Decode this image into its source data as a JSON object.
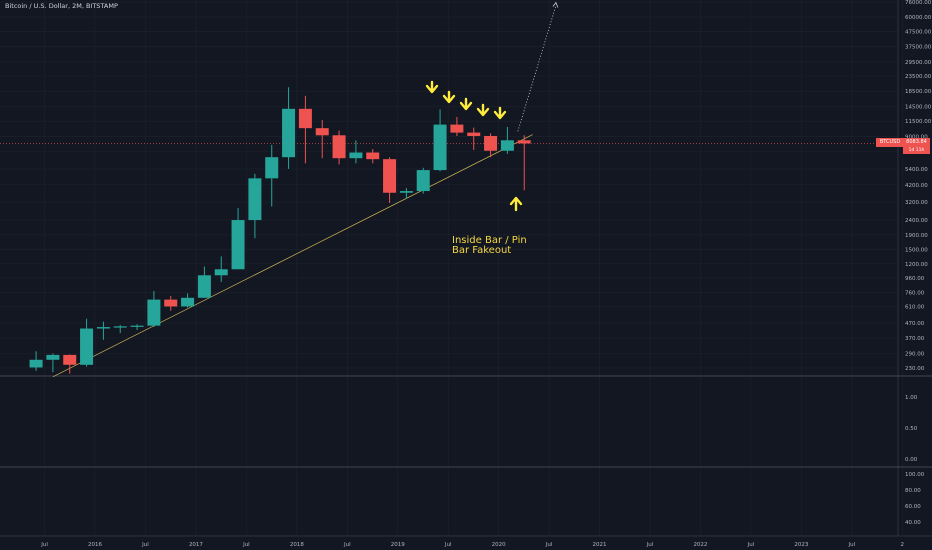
{
  "header": {
    "title": "Bitcoin / U.S. Dollar, 2M, BITSTAMP"
  },
  "annotation": {
    "text": "Inside Bar / Pin\nBar Fakeout",
    "color": "#f5d742"
  },
  "colors": {
    "up": "#26a69a",
    "down": "#ef5350",
    "background": "#131722",
    "grid": "#1e222d",
    "trendline": "#c9b458",
    "arrow": "#ffeb3b"
  },
  "price_badge": {
    "symbol": "BTCUSD",
    "price": "8083.84",
    "countdown": "1d 11h"
  },
  "chart_data": [
    {
      "type": "candlestick",
      "title": "Bitcoin / U.S. Dollar, 2M, BITSTAMP",
      "y_scale": "log",
      "x_ticks": [
        "Jul",
        "2016",
        "Jul",
        "2017",
        "Jul",
        "2018",
        "Jul",
        "2019",
        "Jul",
        "2020",
        "Jul",
        "2021",
        "Jul",
        "2022",
        "Jul",
        "2023",
        "Jul",
        "2"
      ],
      "y_ticks": [
        "76000.00",
        "60000.00",
        "47500.00",
        "37500.00",
        "29500.00",
        "23500.00",
        "18500.00",
        "14500.00",
        "11500.00",
        "9000.00",
        "7100.00",
        "5400.00",
        "4200.00",
        "3200.00",
        "2400.00",
        "1900.00",
        "1500.00",
        "1200.00",
        "960.00",
        "760.00",
        "610.00",
        "470.00",
        "370.00",
        "290.00",
        "230.00"
      ],
      "series": [
        {
          "values": [
            {
              "date": "2015-05",
              "open": 232,
              "high": 300,
              "low": 220,
              "close": 262
            },
            {
              "date": "2015-07",
              "open": 262,
              "high": 290,
              "low": 215,
              "close": 283
            },
            {
              "date": "2015-09",
              "open": 283,
              "high": 285,
              "low": 210,
              "close": 242
            },
            {
              "date": "2015-11",
              "open": 242,
              "high": 502,
              "low": 235,
              "close": 430
            },
            {
              "date": "2016-01",
              "open": 430,
              "high": 480,
              "low": 360,
              "close": 440
            },
            {
              "date": "2016-03",
              "open": 440,
              "high": 455,
              "low": 400,
              "close": 445
            },
            {
              "date": "2016-05",
              "open": 445,
              "high": 460,
              "low": 420,
              "close": 450
            },
            {
              "date": "2016-07",
              "open": 450,
              "high": 780,
              "low": 440,
              "close": 680
            },
            {
              "date": "2016-09",
              "open": 680,
              "high": 720,
              "low": 570,
              "close": 610
            },
            {
              "date": "2016-11",
              "open": 610,
              "high": 750,
              "low": 600,
              "close": 700
            },
            {
              "date": "2017-01",
              "open": 700,
              "high": 1150,
              "low": 700,
              "close": 1000
            },
            {
              "date": "2017-03",
              "open": 1000,
              "high": 1350,
              "low": 900,
              "close": 1100
            },
            {
              "date": "2017-05",
              "open": 1100,
              "high": 2900,
              "low": 1100,
              "close": 2400
            },
            {
              "date": "2017-07",
              "open": 2400,
              "high": 5000,
              "low": 1800,
              "close": 4650
            },
            {
              "date": "2017-09",
              "open": 4650,
              "high": 7900,
              "low": 2970,
              "close": 6500
            },
            {
              "date": "2017-11",
              "open": 6500,
              "high": 19700,
              "low": 5400,
              "close": 14000
            },
            {
              "date": "2018-01",
              "open": 14000,
              "high": 17200,
              "low": 5900,
              "close": 10300
            },
            {
              "date": "2018-03",
              "open": 10300,
              "high": 11700,
              "low": 6400,
              "close": 9200
            },
            {
              "date": "2018-05",
              "open": 9200,
              "high": 9900,
              "low": 5800,
              "close": 6400
            },
            {
              "date": "2018-07",
              "open": 6400,
              "high": 8500,
              "low": 5900,
              "close": 7000
            },
            {
              "date": "2018-09",
              "open": 7000,
              "high": 7400,
              "low": 5900,
              "close": 6300
            },
            {
              "date": "2018-11",
              "open": 6300,
              "high": 6500,
              "low": 3150,
              "close": 3700
            },
            {
              "date": "2019-01",
              "open": 3700,
              "high": 3980,
              "low": 3350,
              "close": 3800
            },
            {
              "date": "2019-03",
              "open": 3800,
              "high": 5500,
              "low": 3650,
              "close": 5300
            },
            {
              "date": "2019-05",
              "open": 5300,
              "high": 13880,
              "low": 5200,
              "close": 10900
            },
            {
              "date": "2019-07",
              "open": 10900,
              "high": 12300,
              "low": 9100,
              "close": 9600
            },
            {
              "date": "2019-09",
              "open": 9600,
              "high": 10400,
              "low": 7300,
              "close": 9100
            },
            {
              "date": "2019-11",
              "open": 9100,
              "high": 9500,
              "low": 6500,
              "close": 7200
            },
            {
              "date": "2020-01",
              "open": 7200,
              "high": 10500,
              "low": 6850,
              "close": 8500
            },
            {
              "date": "2020-03",
              "open": 8500,
              "high": 9200,
              "low": 3850,
              "close": 8084
            }
          ]
        }
      ]
    },
    {
      "type": "line",
      "title": "",
      "y_ticks": [
        "1.00",
        "0.50",
        "0.00"
      ],
      "series": []
    },
    {
      "type": "line",
      "title": "",
      "y_ticks": [
        "100.00",
        "80.00",
        "60.00",
        "40.00"
      ],
      "series": []
    }
  ]
}
